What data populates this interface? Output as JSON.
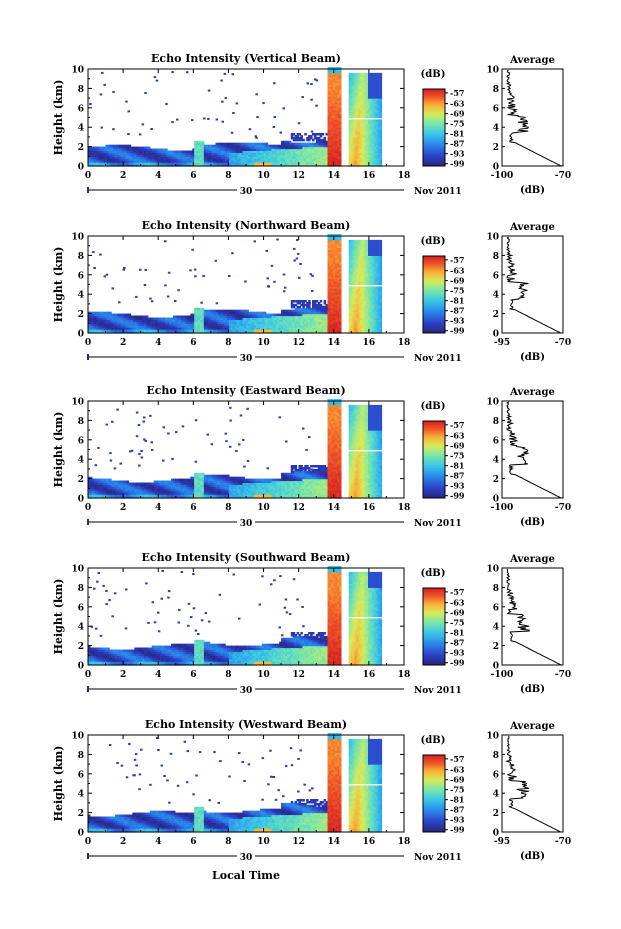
{
  "figure": {
    "date_label": "Nov 2011",
    "day_label": "30",
    "xlabel": "Local Time"
  },
  "chart_data": [
    {
      "type": "heatmap",
      "title": "Echo Intensity (Vertical Beam)",
      "ylabel": "Height (km)",
      "xlim": [
        0,
        18
      ],
      "ylim": [
        0,
        10
      ],
      "x_ticks": [
        "0",
        "2",
        "4",
        "6",
        "8",
        "10",
        "12",
        "14",
        "16",
        "18"
      ],
      "y_ticks": [
        "0",
        "2",
        "4",
        "6",
        "8",
        "10"
      ],
      "colorbar": {
        "label": "(dB)",
        "ticks": [
          "-57",
          "-63",
          "-69",
          "-75",
          "-81",
          "-87",
          "-93",
          "-99"
        ]
      },
      "average": {
        "title": "Average",
        "xlabel": "(dB)",
        "xlim": [
          -100,
          -70
        ],
        "x_ticks": [
          "-100",
          "-70"
        ],
        "y_ticks": [
          "0",
          "2",
          "4",
          "6",
          "8",
          "10"
        ]
      }
    },
    {
      "type": "heatmap",
      "title": "Echo Intensity (Northward Beam)",
      "ylabel": "Height (km)",
      "xlim": [
        0,
        18
      ],
      "ylim": [
        0,
        10
      ],
      "x_ticks": [
        "0",
        "2",
        "4",
        "6",
        "8",
        "10",
        "12",
        "14",
        "16",
        "18"
      ],
      "y_ticks": [
        "0",
        "2",
        "4",
        "6",
        "8",
        "10"
      ],
      "colorbar": {
        "label": "(dB)",
        "ticks": [
          "-57",
          "-63",
          "-69",
          "-75",
          "-81",
          "-87",
          "-93",
          "-99"
        ]
      },
      "average": {
        "title": "Average",
        "xlabel": "(dB)",
        "xlim": [
          -95,
          -70
        ],
        "x_ticks": [
          "-95",
          "-70"
        ],
        "y_ticks": [
          "0",
          "2",
          "4",
          "6",
          "8",
          "10"
        ]
      }
    },
    {
      "type": "heatmap",
      "title": "Echo Intensity (Eastward Beam)",
      "ylabel": "Height (km)",
      "xlim": [
        0,
        18
      ],
      "ylim": [
        0,
        10
      ],
      "x_ticks": [
        "0",
        "2",
        "4",
        "6",
        "8",
        "10",
        "12",
        "14",
        "16",
        "18"
      ],
      "y_ticks": [
        "0",
        "2",
        "4",
        "6",
        "8",
        "10"
      ],
      "colorbar": {
        "label": "(dB)",
        "ticks": [
          "-57",
          "-63",
          "-69",
          "-75",
          "-81",
          "-87",
          "-93",
          "-99"
        ]
      },
      "average": {
        "title": "Average",
        "xlabel": "(dB)",
        "xlim": [
          -100,
          -70
        ],
        "x_ticks": [
          "-100",
          "-70"
        ],
        "y_ticks": [
          "0",
          "2",
          "4",
          "6",
          "8",
          "10"
        ]
      }
    },
    {
      "type": "heatmap",
      "title": "Echo Intensity (Southward Beam)",
      "ylabel": "Height (km)",
      "xlim": [
        0,
        18
      ],
      "ylim": [
        0,
        10
      ],
      "x_ticks": [
        "0",
        "2",
        "4",
        "6",
        "8",
        "10",
        "12",
        "14",
        "16",
        "18"
      ],
      "y_ticks": [
        "0",
        "2",
        "4",
        "6",
        "8",
        "10"
      ],
      "colorbar": {
        "label": "(dB)",
        "ticks": [
          "-57",
          "-63",
          "-69",
          "-75",
          "-81",
          "-87",
          "-93",
          "-99"
        ]
      },
      "average": {
        "title": "Average",
        "xlabel": "(dB)",
        "xlim": [
          -100,
          -70
        ],
        "x_ticks": [
          "-100",
          "-70"
        ],
        "y_ticks": [
          "0",
          "2",
          "4",
          "6",
          "8",
          "10"
        ]
      }
    },
    {
      "type": "heatmap",
      "title": "Echo Intensity (Westward Beam)",
      "ylabel": "Height (km)",
      "xlim": [
        0,
        18
      ],
      "ylim": [
        0,
        10
      ],
      "x_ticks": [
        "0",
        "2",
        "4",
        "6",
        "8",
        "10",
        "12",
        "14",
        "16",
        "18"
      ],
      "y_ticks": [
        "0",
        "2",
        "4",
        "6",
        "8",
        "10"
      ],
      "colorbar": {
        "label": "(dB)",
        "ticks": [
          "-57",
          "-63",
          "-69",
          "-75",
          "-81",
          "-87",
          "-93",
          "-99"
        ]
      },
      "average": {
        "title": "Average",
        "xlabel": "(dB)",
        "xlim": [
          -95,
          -70
        ],
        "x_ticks": [
          "-95",
          "-70"
        ],
        "y_ticks": [
          "0",
          "2",
          "4",
          "6",
          "8",
          "10"
        ]
      }
    }
  ]
}
